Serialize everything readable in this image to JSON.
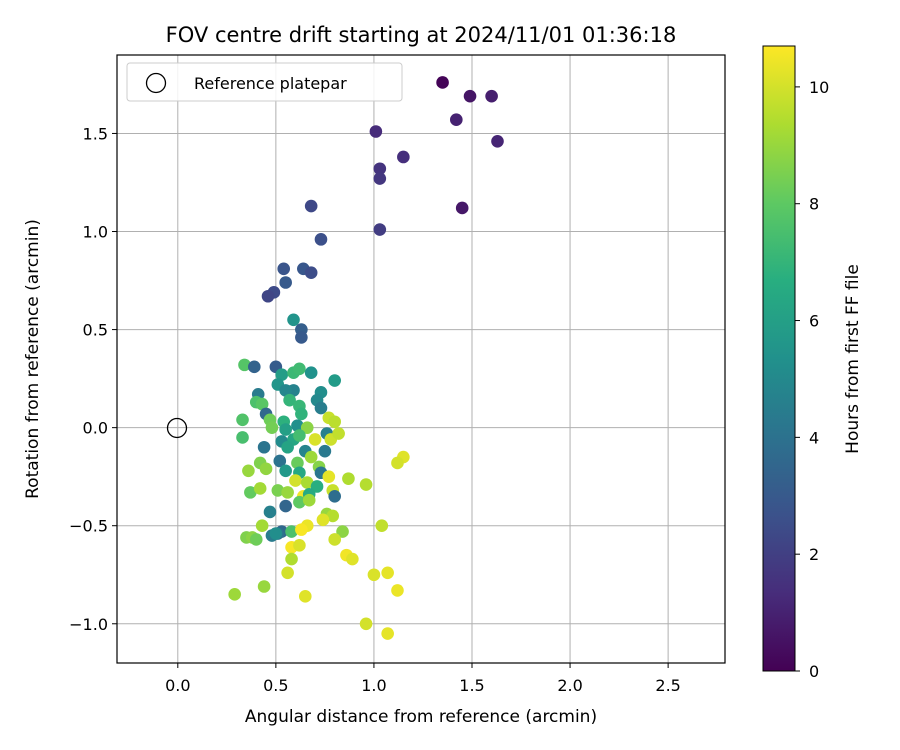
{
  "chart_data": {
    "type": "scatter",
    "title": "FOV centre drift starting at 2024/11/01 01:36:18",
    "xlabel": "Angular distance from reference (arcmin)",
    "ylabel": "Rotation from reference (arcmin)",
    "xlim": [
      -0.31,
      2.79
    ],
    "ylim": [
      -1.2,
      1.9
    ],
    "xticks": [
      0.0,
      0.5,
      1.0,
      1.5,
      2.0,
      2.5
    ],
    "xtick_labels": [
      "0.0",
      "0.5",
      "1.0",
      "1.5",
      "2.0",
      "2.5"
    ],
    "yticks": [
      -1.0,
      -0.5,
      0.0,
      0.5,
      1.0,
      1.5
    ],
    "ytick_labels": [
      "−1.0",
      "−0.5",
      "0.0",
      "0.5",
      "1.0",
      "1.5"
    ],
    "grid": true,
    "legend": {
      "placement": "top-left",
      "entries": [
        "Reference platepar"
      ]
    },
    "reference_point": {
      "x": 0.0,
      "y": 0.0,
      "style": "hollow-black-circle"
    },
    "colormap": "viridis",
    "colorbar": {
      "label": "Hours from first FF file",
      "range": [
        0,
        10.7
      ],
      "ticks": [
        0,
        2,
        4,
        6,
        8,
        10
      ],
      "tick_labels": [
        "0",
        "2",
        "4",
        "6",
        "8",
        "10"
      ]
    },
    "points": [
      {
        "x": 1.35,
        "y": 1.76,
        "t": 0.1
      },
      {
        "x": 1.49,
        "y": 1.69,
        "t": 0.6
      },
      {
        "x": 1.6,
        "y": 1.69,
        "t": 0.9
      },
      {
        "x": 1.42,
        "y": 1.57,
        "t": 1.0
      },
      {
        "x": 1.63,
        "y": 1.46,
        "t": 1.1
      },
      {
        "x": 1.01,
        "y": 1.51,
        "t": 1.3
      },
      {
        "x": 1.15,
        "y": 1.38,
        "t": 1.4
      },
      {
        "x": 1.03,
        "y": 1.32,
        "t": 1.6
      },
      {
        "x": 1.03,
        "y": 1.27,
        "t": 1.7
      },
      {
        "x": 1.45,
        "y": 1.12,
        "t": 0.7
      },
      {
        "x": 1.03,
        "y": 1.01,
        "t": 1.9
      },
      {
        "x": 0.68,
        "y": 1.13,
        "t": 2.3
      },
      {
        "x": 0.73,
        "y": 0.96,
        "t": 2.6
      },
      {
        "x": 0.54,
        "y": 0.81,
        "t": 2.8
      },
      {
        "x": 0.64,
        "y": 0.81,
        "t": 2.9
      },
      {
        "x": 0.68,
        "y": 0.79,
        "t": 2.5
      },
      {
        "x": 0.55,
        "y": 0.74,
        "t": 3.0
      },
      {
        "x": 0.49,
        "y": 0.69,
        "t": 2.4
      },
      {
        "x": 0.46,
        "y": 0.67,
        "t": 2.2
      },
      {
        "x": 0.59,
        "y": 0.55,
        "t": 5.5
      },
      {
        "x": 0.63,
        "y": 0.5,
        "t": 3.2
      },
      {
        "x": 0.63,
        "y": 0.46,
        "t": 3.0
      },
      {
        "x": 0.34,
        "y": 0.32,
        "t": 7.8
      },
      {
        "x": 0.39,
        "y": 0.31,
        "t": 3.4
      },
      {
        "x": 0.5,
        "y": 0.31,
        "t": 3.1
      },
      {
        "x": 0.53,
        "y": 0.27,
        "t": 5.9
      },
      {
        "x": 0.59,
        "y": 0.28,
        "t": 7.2
      },
      {
        "x": 0.62,
        "y": 0.3,
        "t": 7.3
      },
      {
        "x": 0.68,
        "y": 0.28,
        "t": 5.4
      },
      {
        "x": 0.51,
        "y": 0.22,
        "t": 5.6
      },
      {
        "x": 0.59,
        "y": 0.19,
        "t": 4.7
      },
      {
        "x": 0.73,
        "y": 0.18,
        "t": 5.2
      },
      {
        "x": 0.8,
        "y": 0.24,
        "t": 5.8
      },
      {
        "x": 0.41,
        "y": 0.17,
        "t": 4.4
      },
      {
        "x": 0.55,
        "y": 0.19,
        "t": 4.9
      },
      {
        "x": 0.57,
        "y": 0.14,
        "t": 7.0
      },
      {
        "x": 0.71,
        "y": 0.14,
        "t": 5.0
      },
      {
        "x": 0.4,
        "y": 0.13,
        "t": 7.6
      },
      {
        "x": 0.43,
        "y": 0.12,
        "t": 7.9
      },
      {
        "x": 0.45,
        "y": 0.07,
        "t": 3.6
      },
      {
        "x": 0.62,
        "y": 0.11,
        "t": 7.1
      },
      {
        "x": 0.73,
        "y": 0.1,
        "t": 4.5
      },
      {
        "x": 0.47,
        "y": 0.04,
        "t": 8.3
      },
      {
        "x": 0.54,
        "y": 0.03,
        "t": 6.8
      },
      {
        "x": 0.63,
        "y": 0.07,
        "t": 6.9
      },
      {
        "x": 0.33,
        "y": 0.04,
        "t": 7.7
      },
      {
        "x": 0.48,
        "y": 0.0,
        "t": 8.4
      },
      {
        "x": 0.55,
        "y": -0.01,
        "t": 6.0
      },
      {
        "x": 0.61,
        "y": 0.01,
        "t": 5.3
      },
      {
        "x": 0.66,
        "y": 0.0,
        "t": 8.8
      },
      {
        "x": 0.77,
        "y": 0.05,
        "t": 9.8
      },
      {
        "x": 0.8,
        "y": 0.03,
        "t": 9.6
      },
      {
        "x": 0.76,
        "y": -0.03,
        "t": 4.6
      },
      {
        "x": 0.7,
        "y": -0.06,
        "t": 10.1
      },
      {
        "x": 0.53,
        "y": -0.07,
        "t": 5.1
      },
      {
        "x": 0.59,
        "y": -0.06,
        "t": 6.3
      },
      {
        "x": 0.62,
        "y": -0.04,
        "t": 7.4
      },
      {
        "x": 0.78,
        "y": -0.06,
        "t": 9.9
      },
      {
        "x": 0.82,
        "y": -0.03,
        "t": 9.7
      },
      {
        "x": 0.33,
        "y": -0.05,
        "t": 7.5
      },
      {
        "x": 0.44,
        "y": -0.1,
        "t": 4.1
      },
      {
        "x": 0.56,
        "y": -0.1,
        "t": 6.2
      },
      {
        "x": 0.65,
        "y": -0.12,
        "t": 4.8
      },
      {
        "x": 0.68,
        "y": -0.15,
        "t": 9.1
      },
      {
        "x": 0.75,
        "y": -0.12,
        "t": 4.3
      },
      {
        "x": 0.42,
        "y": -0.18,
        "t": 8.6
      },
      {
        "x": 0.52,
        "y": -0.17,
        "t": 4.0
      },
      {
        "x": 0.61,
        "y": -0.18,
        "t": 8.2
      },
      {
        "x": 0.72,
        "y": -0.2,
        "t": 8.7
      },
      {
        "x": 1.15,
        "y": -0.15,
        "t": 10.2
      },
      {
        "x": 1.12,
        "y": -0.18,
        "t": 10.0
      },
      {
        "x": 0.36,
        "y": -0.22,
        "t": 9.0
      },
      {
        "x": 0.45,
        "y": -0.21,
        "t": 8.9
      },
      {
        "x": 0.55,
        "y": -0.22,
        "t": 5.7
      },
      {
        "x": 0.62,
        "y": -0.23,
        "t": 6.4
      },
      {
        "x": 0.73,
        "y": -0.23,
        "t": 4.2
      },
      {
        "x": 0.77,
        "y": -0.25,
        "t": 10.3
      },
      {
        "x": 0.87,
        "y": -0.26,
        "t": 9.4
      },
      {
        "x": 0.6,
        "y": -0.27,
        "t": 10.0
      },
      {
        "x": 0.66,
        "y": -0.28,
        "t": 9.3
      },
      {
        "x": 0.71,
        "y": -0.3,
        "t": 6.7
      },
      {
        "x": 0.96,
        "y": -0.29,
        "t": 9.5
      },
      {
        "x": 0.37,
        "y": -0.33,
        "t": 8.1
      },
      {
        "x": 0.42,
        "y": -0.31,
        "t": 9.2
      },
      {
        "x": 0.51,
        "y": -0.32,
        "t": 8.5
      },
      {
        "x": 0.56,
        "y": -0.33,
        "t": 9.0
      },
      {
        "x": 0.64,
        "y": -0.35,
        "t": 10.5
      },
      {
        "x": 0.67,
        "y": -0.34,
        "t": 6.5
      },
      {
        "x": 0.79,
        "y": -0.32,
        "t": 9.8
      },
      {
        "x": 0.8,
        "y": -0.35,
        "t": 3.8
      },
      {
        "x": 0.55,
        "y": -0.4,
        "t": 3.5
      },
      {
        "x": 0.62,
        "y": -0.38,
        "t": 8.0
      },
      {
        "x": 0.67,
        "y": -0.37,
        "t": 9.1
      },
      {
        "x": 0.47,
        "y": -0.43,
        "t": 4.6
      },
      {
        "x": 0.76,
        "y": -0.44,
        "t": 9.0
      },
      {
        "x": 0.79,
        "y": -0.45,
        "t": 9.5
      },
      {
        "x": 0.74,
        "y": -0.47,
        "t": 10.2
      },
      {
        "x": 0.66,
        "y": -0.5,
        "t": 10.4
      },
      {
        "x": 0.43,
        "y": -0.5,
        "t": 9.2
      },
      {
        "x": 0.53,
        "y": -0.53,
        "t": 3.6
      },
      {
        "x": 0.51,
        "y": -0.54,
        "t": 4.0
      },
      {
        "x": 0.58,
        "y": -0.53,
        "t": 7.6
      },
      {
        "x": 0.63,
        "y": -0.52,
        "t": 10.6
      },
      {
        "x": 0.84,
        "y": -0.53,
        "t": 8.8
      },
      {
        "x": 1.04,
        "y": -0.5,
        "t": 9.7
      },
      {
        "x": 0.35,
        "y": -0.56,
        "t": 8.6
      },
      {
        "x": 0.38,
        "y": -0.56,
        "t": 8.8
      },
      {
        "x": 0.4,
        "y": -0.57,
        "t": 8.3
      },
      {
        "x": 0.48,
        "y": -0.55,
        "t": 4.4
      },
      {
        "x": 0.5,
        "y": -0.54,
        "t": 5.2
      },
      {
        "x": 0.8,
        "y": -0.57,
        "t": 9.9
      },
      {
        "x": 0.58,
        "y": -0.61,
        "t": 10.6
      },
      {
        "x": 0.62,
        "y": -0.6,
        "t": 10.1
      },
      {
        "x": 0.86,
        "y": -0.65,
        "t": 10.5
      },
      {
        "x": 0.89,
        "y": -0.67,
        "t": 10.2
      },
      {
        "x": 0.58,
        "y": -0.67,
        "t": 9.4
      },
      {
        "x": 0.56,
        "y": -0.74,
        "t": 10.0
      },
      {
        "x": 1.0,
        "y": -0.75,
        "t": 10.1
      },
      {
        "x": 1.07,
        "y": -0.74,
        "t": 10.3
      },
      {
        "x": 0.44,
        "y": -0.81,
        "t": 9.0
      },
      {
        "x": 1.12,
        "y": -0.83,
        "t": 10.4
      },
      {
        "x": 0.29,
        "y": -0.85,
        "t": 9.1
      },
      {
        "x": 0.65,
        "y": -0.86,
        "t": 10.2
      },
      {
        "x": 0.96,
        "y": -1.0,
        "t": 10.0
      },
      {
        "x": 1.07,
        "y": -1.05,
        "t": 10.3
      }
    ]
  }
}
